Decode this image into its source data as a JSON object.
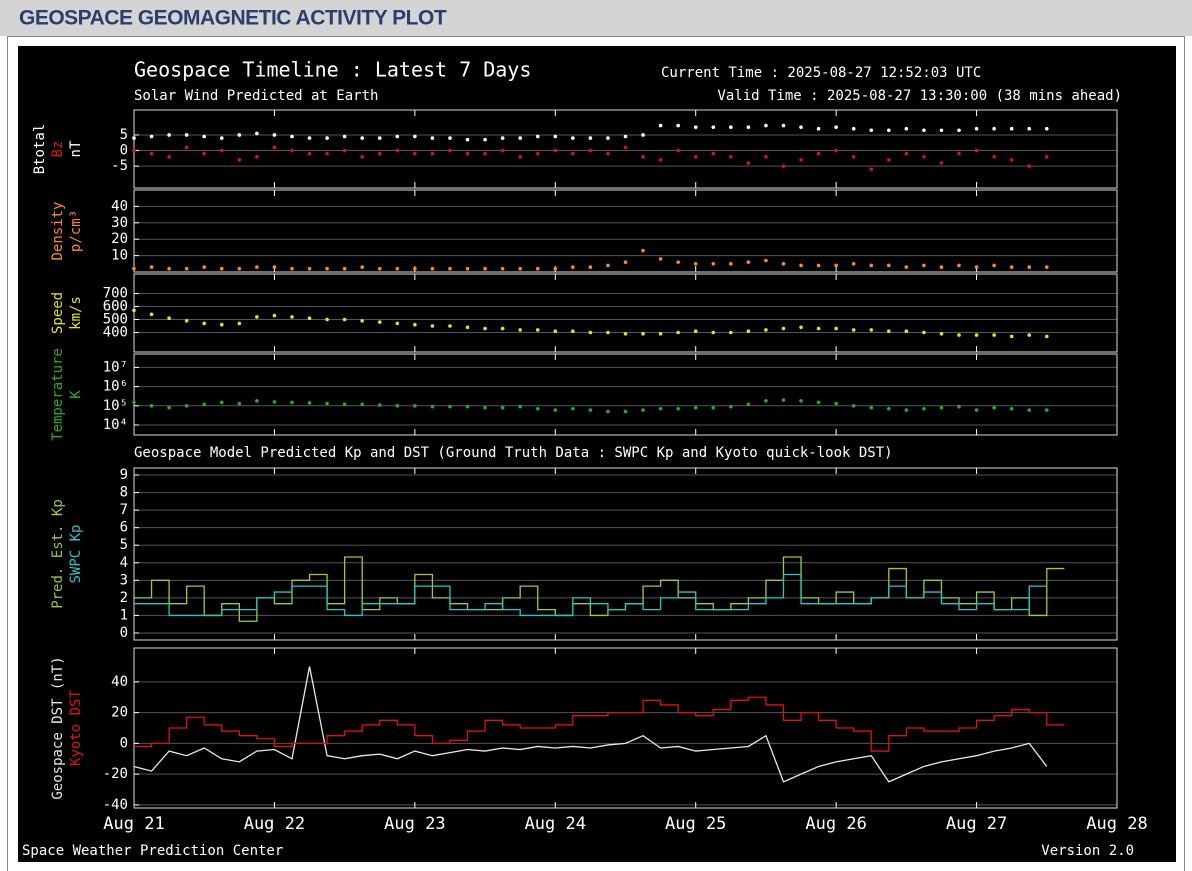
{
  "page_title": "GEOSPACE GEOMAGNETIC ACTIVITY PLOT",
  "plot": {
    "title": "Geospace Timeline : Latest 7 Days",
    "subtitle": "Solar Wind Predicted at Earth",
    "current_time": "Current Time : 2025-08-27 12:52:03 UTC",
    "valid_time": "Valid Time : 2025-08-27 13:30:00 (38 mins ahead)",
    "section_title": "Geospace Model Predicted Kp and DST (Ground Truth Data : SWPC Kp and Kyoto quick-look DST)",
    "footer_left": "Space Weather Prediction Center",
    "footer_right": "Version 2.0"
  },
  "chart_data": [
    {
      "type": "scatter",
      "ylabel": "nT",
      "ylabel_color": "#ffffff",
      "xlim": [
        0,
        7
      ],
      "ylim": [
        -12,
        13
      ],
      "yticks": [
        -5,
        0,
        5
      ],
      "grid": true,
      "x": [
        0,
        0.125,
        0.25,
        0.375,
        0.5,
        0.625,
        0.75,
        0.875,
        1,
        1.125,
        1.25,
        1.375,
        1.5,
        1.625,
        1.75,
        1.875,
        2,
        2.125,
        2.25,
        2.375,
        2.5,
        2.625,
        2.75,
        2.875,
        3,
        3.125,
        3.25,
        3.375,
        3.5,
        3.625,
        3.75,
        3.875,
        4,
        4.125,
        4.25,
        4.375,
        4.5,
        4.625,
        4.75,
        4.875,
        5,
        5.125,
        5.25,
        5.375,
        5.5,
        5.625,
        5.75,
        5.875,
        6,
        6.125,
        6.25,
        6.375,
        6.5
      ],
      "series": [
        {
          "name": "Btotal",
          "color": "#ffffff",
          "values": [
            4,
            4.5,
            5,
            5,
            4.5,
            4,
            5,
            5.5,
            5,
            4.5,
            4,
            4,
            4.5,
            4,
            4,
            4.5,
            4.5,
            4,
            4,
            3.5,
            3.5,
            4,
            4,
            4.5,
            4.5,
            4,
            4,
            4,
            4.5,
            5,
            8,
            8,
            7.5,
            7.5,
            7.5,
            7.5,
            8,
            8,
            7.5,
            7,
            7.5,
            7,
            6.5,
            6.5,
            7,
            6.5,
            6.5,
            6.5,
            7,
            7,
            7,
            7,
            7
          ]
        },
        {
          "name": "Bz",
          "color": "#e01010",
          "values": [
            0,
            -1,
            -2,
            1,
            -1,
            0,
            -3,
            -2,
            1,
            0,
            -1,
            -1,
            0,
            -2,
            -1,
            0,
            -1,
            -1,
            0,
            -1,
            -1,
            0,
            -2,
            -1,
            0,
            -1,
            0,
            -1,
            1,
            -2,
            -3,
            0,
            -2,
            -1,
            -2,
            -4,
            -2,
            -5,
            -3,
            -1,
            0,
            -2,
            -6,
            -3,
            -1,
            -2,
            -4,
            -1,
            0,
            -2,
            -3,
            -5,
            -2
          ]
        }
      ]
    },
    {
      "type": "scatter",
      "ylabel": "p/cm³",
      "ylabel_color": "#ff8c1a",
      "xlim": [
        0,
        7
      ],
      "ylim": [
        0,
        50
      ],
      "yticks": [
        10,
        20,
        30,
        40
      ],
      "grid": true,
      "x": [
        0,
        0.125,
        0.25,
        0.375,
        0.5,
        0.625,
        0.75,
        0.875,
        1,
        1.125,
        1.25,
        1.375,
        1.5,
        1.625,
        1.75,
        1.875,
        2,
        2.125,
        2.25,
        2.375,
        2.5,
        2.625,
        2.75,
        2.875,
        3,
        3.125,
        3.25,
        3.375,
        3.5,
        3.625,
        3.75,
        3.875,
        4,
        4.125,
        4.25,
        4.375,
        4.5,
        4.625,
        4.75,
        4.875,
        5,
        5.125,
        5.25,
        5.375,
        5.5,
        5.625,
        5.75,
        5.875,
        6,
        6.125,
        6.25,
        6.375,
        6.5
      ],
      "series": [
        {
          "name": "Density",
          "color": "#ff8c1a",
          "values": [
            2,
            3,
            2,
            2,
            3,
            2,
            2,
            3,
            3,
            2,
            2,
            2,
            2,
            3,
            2,
            2,
            2,
            2,
            2,
            2,
            2,
            2,
            2,
            2,
            2,
            3,
            3,
            4,
            6,
            13,
            8,
            6,
            5,
            5,
            5,
            6,
            7,
            5,
            4,
            4,
            4,
            5,
            4,
            4,
            3,
            4,
            3,
            4,
            3,
            4,
            3,
            3,
            3
          ]
        }
      ]
    },
    {
      "type": "scatter",
      "ylabel": "km/s",
      "ylabel_color": "#e8e800",
      "xlim": [
        0,
        7
      ],
      "ylim": [
        250,
        850
      ],
      "yticks": [
        400,
        500,
        600,
        700
      ],
      "grid": true,
      "x": [
        0,
        0.125,
        0.25,
        0.375,
        0.5,
        0.625,
        0.75,
        0.875,
        1,
        1.125,
        1.25,
        1.375,
        1.5,
        1.625,
        1.75,
        1.875,
        2,
        2.125,
        2.25,
        2.375,
        2.5,
        2.625,
        2.75,
        2.875,
        3,
        3.125,
        3.25,
        3.375,
        3.5,
        3.625,
        3.75,
        3.875,
        4,
        4.125,
        4.25,
        4.375,
        4.5,
        4.625,
        4.75,
        4.875,
        5,
        5.125,
        5.25,
        5.375,
        5.5,
        5.625,
        5.75,
        5.875,
        6,
        6.125,
        6.25,
        6.375,
        6.5
      ],
      "series": [
        {
          "name": "Speed",
          "color": "#e8e800",
          "values": [
            570,
            540,
            510,
            490,
            470,
            460,
            470,
            520,
            530,
            520,
            510,
            500,
            500,
            490,
            480,
            470,
            460,
            450,
            450,
            440,
            430,
            430,
            420,
            420,
            410,
            410,
            400,
            400,
            390,
            390,
            390,
            400,
            410,
            400,
            400,
            410,
            420,
            430,
            440,
            430,
            430,
            420,
            420,
            410,
            410,
            400,
            390,
            380,
            380,
            380,
            370,
            380,
            370
          ]
        }
      ]
    },
    {
      "type": "scatter",
      "ylabel": "K",
      "ylabel_color": "#22b022",
      "log": true,
      "xlim": [
        0,
        7
      ],
      "ylim": [
        3000,
        50000000
      ],
      "yticks": [
        {
          "value": 10000,
          "label": "10⁴"
        },
        {
          "value": 100000,
          "label": "10⁵"
        },
        {
          "value": 1000000,
          "label": "10⁶"
        },
        {
          "value": 10000000,
          "label": "10⁷"
        }
      ],
      "grid": true,
      "x": [
        0,
        0.125,
        0.25,
        0.375,
        0.5,
        0.625,
        0.75,
        0.875,
        1,
        1.125,
        1.25,
        1.375,
        1.5,
        1.625,
        1.75,
        1.875,
        2,
        2.125,
        2.25,
        2.375,
        2.5,
        2.625,
        2.75,
        2.875,
        3,
        3.125,
        3.25,
        3.375,
        3.5,
        3.625,
        3.75,
        3.875,
        4,
        4.125,
        4.25,
        4.375,
        4.5,
        4.625,
        4.75,
        4.875,
        5,
        5.125,
        5.25,
        5.375,
        5.5,
        5.625,
        5.75,
        5.875,
        6,
        6.125,
        6.25,
        6.375,
        6.5
      ],
      "series": [
        {
          "name": "Temperature",
          "color": "#22b022",
          "values": [
            150000,
            100000,
            80000,
            100000,
            120000,
            150000,
            130000,
            180000,
            160000,
            150000,
            140000,
            130000,
            120000,
            120000,
            110000,
            100000,
            100000,
            90000,
            90000,
            90000,
            80000,
            80000,
            90000,
            70000,
            60000,
            70000,
            60000,
            50000,
            50000,
            60000,
            70000,
            70000,
            80000,
            80000,
            90000,
            120000,
            180000,
            200000,
            180000,
            150000,
            130000,
            100000,
            80000,
            70000,
            60000,
            70000,
            80000,
            90000,
            60000,
            80000,
            70000,
            60000,
            60000
          ]
        }
      ]
    },
    {
      "type": "line",
      "xlim": [
        0,
        7
      ],
      "ylim": [
        -0.4,
        9.4
      ],
      "yticks": [
        0,
        1,
        2,
        3,
        4,
        5,
        6,
        7,
        8,
        9
      ],
      "grid": true,
      "x": [
        0,
        0.125,
        0.25,
        0.375,
        0.5,
        0.625,
        0.75,
        0.875,
        1,
        1.125,
        1.25,
        1.375,
        1.5,
        1.625,
        1.75,
        1.875,
        2,
        2.125,
        2.25,
        2.375,
        2.5,
        2.625,
        2.75,
        2.875,
        3,
        3.125,
        3.25,
        3.375,
        3.5,
        3.625,
        3.75,
        3.875,
        4,
        4.125,
        4.25,
        4.375,
        4.5,
        4.625,
        4.75,
        4.875,
        5,
        5.125,
        5.25,
        5.375,
        5.5,
        5.625,
        5.75,
        5.875,
        6,
        6.125,
        6.25,
        6.375,
        6.5
      ],
      "series": [
        {
          "name": "Pred. Est. Kp",
          "color": "#9acd32",
          "step": true,
          "values": [
            2,
            3,
            1.67,
            2.67,
            1,
            1.67,
            0.67,
            2,
            1.67,
            3,
            3.33,
            1.67,
            4.33,
            1.33,
            2,
            1.67,
            3.33,
            2,
            1.67,
            1.33,
            1.33,
            2,
            2.67,
            1.33,
            1,
            1.67,
            1,
            1.33,
            1.67,
            2.67,
            3,
            2,
            1.67,
            1.33,
            1.67,
            2,
            3,
            4.33,
            2,
            1.67,
            2.33,
            1.67,
            2,
            3.67,
            2,
            3,
            2,
            1.67,
            2.33,
            1.33,
            2,
            1,
            3.67
          ]
        },
        {
          "name": "SWPC Kp",
          "color": "#20c8c8",
          "step": true,
          "values": [
            1.67,
            1.67,
            1,
            1,
            1,
            1.33,
            1.33,
            2,
            2.33,
            2.67,
            2.67,
            1.33,
            1,
            1.67,
            1.67,
            1.67,
            2.67,
            2.67,
            1.33,
            1.33,
            1.67,
            1.33,
            1,
            1,
            1,
            2,
            1.67,
            1.33,
            1.67,
            1.33,
            2,
            2.33,
            1.33,
            1.33,
            1.33,
            1.67,
            2,
            3.33,
            1.67,
            1.67,
            1.67,
            1.67,
            2,
            2.67,
            2,
            2.33,
            1.67,
            1.33,
            1.67,
            1.33,
            1.33,
            2.67,
            null
          ]
        }
      ]
    },
    {
      "type": "line",
      "xlim": [
        0,
        7
      ],
      "ylim": [
        -42,
        62
      ],
      "yticks": [
        -40,
        -20,
        0,
        20,
        40
      ],
      "grid": true,
      "xticks": [
        {
          "value": 0,
          "label": "Aug 21"
        },
        {
          "value": 1,
          "label": "Aug 22"
        },
        {
          "value": 2,
          "label": "Aug 23"
        },
        {
          "value": 3,
          "label": "Aug 24"
        },
        {
          "value": 4,
          "label": "Aug 25"
        },
        {
          "value": 5,
          "label": "Aug 26"
        },
        {
          "value": 6,
          "label": "Aug 27"
        },
        {
          "value": 7,
          "label": "Aug 28"
        }
      ],
      "x": [
        0,
        0.125,
        0.25,
        0.375,
        0.5,
        0.625,
        0.75,
        0.875,
        1,
        1.125,
        1.25,
        1.375,
        1.5,
        1.625,
        1.75,
        1.875,
        2,
        2.125,
        2.25,
        2.375,
        2.5,
        2.625,
        2.75,
        2.875,
        3,
        3.125,
        3.25,
        3.375,
        3.5,
        3.625,
        3.75,
        3.875,
        4,
        4.125,
        4.25,
        4.375,
        4.5,
        4.625,
        4.75,
        4.875,
        5,
        5.125,
        5.25,
        5.375,
        5.5,
        5.625,
        5.75,
        5.875,
        6,
        6.125,
        6.25,
        6.375,
        6.5
      ],
      "series": [
        {
          "name": "Geospace DST (nT)",
          "color": "#e8e8e8",
          "step": false,
          "values": [
            -15,
            -18,
            -5,
            -8,
            -3,
            -10,
            -12,
            -5,
            -4,
            -10,
            50,
            -8,
            -10,
            -8,
            -7,
            -10,
            -5,
            -8,
            -6,
            -4,
            -5,
            -3,
            -4,
            -2,
            -3,
            -2,
            -3,
            -1,
            0,
            5,
            -3,
            -2,
            -5,
            -4,
            -3,
            -2,
            5,
            -25,
            -20,
            -15,
            -12,
            -10,
            -8,
            -25,
            -20,
            -15,
            -12,
            -10,
            -8,
            -5,
            -3,
            0,
            -15
          ]
        },
        {
          "name": "Kyoto DST",
          "color": "#e01010",
          "step": true,
          "values": [
            -2,
            0,
            10,
            17,
            12,
            8,
            5,
            3,
            -2,
            0,
            0,
            5,
            8,
            12,
            15,
            12,
            5,
            0,
            2,
            8,
            15,
            12,
            10,
            10,
            12,
            18,
            18,
            20,
            20,
            28,
            25,
            20,
            18,
            22,
            28,
            30,
            25,
            15,
            20,
            15,
            10,
            8,
            -5,
            5,
            10,
            8,
            8,
            10,
            15,
            18,
            22,
            20,
            12
          ]
        }
      ]
    }
  ]
}
